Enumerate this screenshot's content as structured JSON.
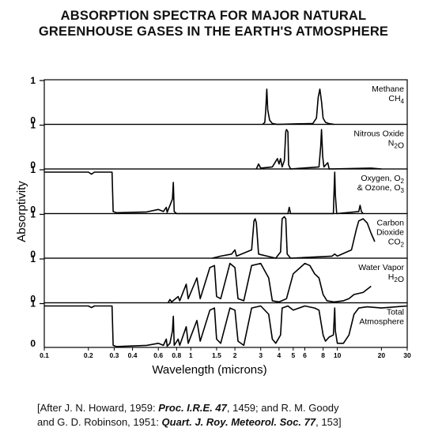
{
  "chart_data": {
    "type": "line",
    "title": "ABSORPTION SPECTRA FOR MAJOR NATURAL",
    "subtitle": "GREENHOUSE GASES IN THE EARTH'S ATMOSPHERE",
    "xlabel": "Wavelength (microns)",
    "ylabel": "Absorptivity",
    "xscale": "log",
    "xlim": [
      0.1,
      30
    ],
    "ylim": [
      0,
      1
    ],
    "x_ticks": [
      "0.1",
      "0.2",
      "0.3",
      "0.4",
      "0.6",
      "0.8",
      "1",
      "1.5",
      "2",
      "3",
      "4",
      "5",
      "6",
      "8",
      "10",
      "20",
      "30"
    ],
    "x_tick_values": [
      0.1,
      0.2,
      0.3,
      0.4,
      0.6,
      0.8,
      1,
      1.5,
      2,
      3,
      4,
      5,
      6,
      8,
      10,
      20,
      30
    ],
    "y_ticks": [
      "0",
      "1"
    ],
    "grid": false,
    "panels": [
      {
        "name": "Methane",
        "formula": "CH",
        "subscript": "4",
        "points": [
          [
            3.1,
            0
          ],
          [
            3.2,
            0.05
          ],
          [
            3.25,
            0.35
          ],
          [
            3.3,
            0.85
          ],
          [
            3.35,
            0.35
          ],
          [
            3.45,
            0.1
          ],
          [
            3.6,
            0.02
          ],
          [
            3.9,
            0
          ],
          [
            6.8,
            0.02
          ],
          [
            7.2,
            0.15
          ],
          [
            7.4,
            0.65
          ],
          [
            7.6,
            0.85
          ],
          [
            7.8,
            0.55
          ],
          [
            8.0,
            0.15
          ],
          [
            8.3,
            0.05
          ],
          [
            8.7,
            0.02
          ],
          [
            9.5,
            0
          ]
        ]
      },
      {
        "name": "Nitrous Oxide",
        "formula": "N",
        "subscript": "2",
        "formula_tail": "O",
        "points": [
          [
            2.8,
            0
          ],
          [
            2.9,
            0.12
          ],
          [
            3.0,
            0.02
          ],
          [
            3.6,
            0.05
          ],
          [
            3.9,
            0.25
          ],
          [
            4.0,
            0.12
          ],
          [
            4.1,
            0.25
          ],
          [
            4.2,
            0.05
          ],
          [
            4.35,
            0.2
          ],
          [
            4.45,
            0.9
          ],
          [
            4.5,
            0.95
          ],
          [
            4.6,
            0.9
          ],
          [
            4.65,
            0.1
          ],
          [
            4.8,
            0
          ],
          [
            7.5,
            0.05
          ],
          [
            7.7,
            0.55
          ],
          [
            7.8,
            0.95
          ],
          [
            7.95,
            0.3
          ],
          [
            8.1,
            0.05
          ],
          [
            8.6,
            0.15
          ],
          [
            8.8,
            0
          ],
          [
            17,
            0.02
          ],
          [
            20,
            0
          ]
        ]
      },
      {
        "name": "Oxygen, O",
        "name_subscript": "2",
        "formula": "& Ozone, O",
        "subscript": "3",
        "points": [
          [
            0.1,
            1
          ],
          [
            0.2,
            1
          ],
          [
            0.21,
            0.95
          ],
          [
            0.22,
            1
          ],
          [
            0.29,
            1
          ],
          [
            0.295,
            0.05
          ],
          [
            0.31,
            0.02
          ],
          [
            0.5,
            0.04
          ],
          [
            0.6,
            0.1
          ],
          [
            0.65,
            0.05
          ],
          [
            0.68,
            0.15
          ],
          [
            0.69,
            0.03
          ],
          [
            0.75,
            0.35
          ],
          [
            0.76,
            0.75
          ],
          [
            0.77,
            0.05
          ],
          [
            0.8,
            0
          ],
          [
            4.6,
            0
          ],
          [
            4.7,
            0.15
          ],
          [
            4.8,
            0
          ],
          [
            9.4,
            0
          ],
          [
            9.5,
            0.55
          ],
          [
            9.6,
            1
          ],
          [
            9.7,
            0.45
          ],
          [
            9.9,
            0
          ],
          [
            14,
            0.05
          ],
          [
            14.3,
            0.2
          ],
          [
            14.6,
            0.05
          ],
          [
            15,
            0
          ]
        ]
      },
      {
        "name": "Carbon",
        "formula": "Dioxide",
        "formula2": "CO",
        "subscript": "2",
        "points": [
          [
            1.4,
            0
          ],
          [
            1.6,
            0.05
          ],
          [
            1.9,
            0.1
          ],
          [
            2.0,
            0.2
          ],
          [
            2.05,
            0.05
          ],
          [
            2.6,
            0.2
          ],
          [
            2.7,
            0.9
          ],
          [
            2.75,
            0.95
          ],
          [
            2.8,
            0.85
          ],
          [
            2.9,
            0.1
          ],
          [
            3.8,
            0
          ],
          [
            4.1,
            0.15
          ],
          [
            4.2,
            0.95
          ],
          [
            4.35,
            1
          ],
          [
            4.45,
            0.95
          ],
          [
            4.55,
            0.1
          ],
          [
            4.8,
            0
          ],
          [
            9.2,
            0.05
          ],
          [
            9.6,
            0.1
          ],
          [
            10,
            0.05
          ],
          [
            12.5,
            0.2
          ],
          [
            13.5,
            0.7
          ],
          [
            14,
            0.9
          ],
          [
            15,
            0.95
          ],
          [
            16,
            0.85
          ],
          [
            17,
            0.6
          ],
          [
            18,
            0.4
          ]
        ]
      },
      {
        "name": "Water Vapor",
        "formula": "H",
        "subscript": "2",
        "formula_tail": "O",
        "points": [
          [
            0.7,
            0
          ],
          [
            0.72,
            0.08
          ],
          [
            0.74,
            0.02
          ],
          [
            0.82,
            0.15
          ],
          [
            0.84,
            0.05
          ],
          [
            0.93,
            0.45
          ],
          [
            0.96,
            0.1
          ],
          [
            1.1,
            0.6
          ],
          [
            1.16,
            0.1
          ],
          [
            1.35,
            0.85
          ],
          [
            1.45,
            0.9
          ],
          [
            1.5,
            0.15
          ],
          [
            1.6,
            0.1
          ],
          [
            1.85,
            0.95
          ],
          [
            2.0,
            0.85
          ],
          [
            2.1,
            0.1
          ],
          [
            2.3,
            0.05
          ],
          [
            2.6,
            0.9
          ],
          [
            3.0,
            0.95
          ],
          [
            3.4,
            0.6
          ],
          [
            3.6,
            0.05
          ],
          [
            4.0,
            0.02
          ],
          [
            4.5,
            0.1
          ],
          [
            5.0,
            0.7
          ],
          [
            6.0,
            0.95
          ],
          [
            6.5,
            0.9
          ],
          [
            7.0,
            0.7
          ],
          [
            7.5,
            0.6
          ],
          [
            8.0,
            0.2
          ],
          [
            8.5,
            0.05
          ],
          [
            9.5,
            0.02
          ],
          [
            11,
            0.05
          ],
          [
            12,
            0.1
          ],
          [
            13,
            0.2
          ],
          [
            15,
            0.25
          ],
          [
            17,
            0.4
          ]
        ]
      },
      {
        "name": "Total",
        "formula": "Atmosphere",
        "points": [
          [
            0.1,
            1
          ],
          [
            0.2,
            1
          ],
          [
            0.21,
            0.96
          ],
          [
            0.22,
            1
          ],
          [
            0.29,
            1
          ],
          [
            0.295,
            0.05
          ],
          [
            0.31,
            0.02
          ],
          [
            0.5,
            0.05
          ],
          [
            0.6,
            0.1
          ],
          [
            0.65,
            0.05
          ],
          [
            0.68,
            0.2
          ],
          [
            0.69,
            0.03
          ],
          [
            0.72,
            0.1
          ],
          [
            0.75,
            0.4
          ],
          [
            0.76,
            0.75
          ],
          [
            0.77,
            0.05
          ],
          [
            0.82,
            0.2
          ],
          [
            0.84,
            0.05
          ],
          [
            0.93,
            0.5
          ],
          [
            0.96,
            0.1
          ],
          [
            1.1,
            0.65
          ],
          [
            1.16,
            0.15
          ],
          [
            1.35,
            0.9
          ],
          [
            1.45,
            0.95
          ],
          [
            1.5,
            0.2
          ],
          [
            1.6,
            0.1
          ],
          [
            1.85,
            0.95
          ],
          [
            2.0,
            0.9
          ],
          [
            2.1,
            0.15
          ],
          [
            2.3,
            0.05
          ],
          [
            2.6,
            0.95
          ],
          [
            3.0,
            1
          ],
          [
            3.4,
            0.8
          ],
          [
            3.6,
            0.2
          ],
          [
            3.8,
            0.1
          ],
          [
            4.1,
            0.3
          ],
          [
            4.2,
            0.95
          ],
          [
            4.6,
            1
          ],
          [
            5.0,
            0.9
          ],
          [
            6.0,
            1
          ],
          [
            7.0,
            0.95
          ],
          [
            7.5,
            0.9
          ],
          [
            8.0,
            0.3
          ],
          [
            8.3,
            0.15
          ],
          [
            8.8,
            0.25
          ],
          [
            9.4,
            0.3
          ],
          [
            9.6,
            0.95
          ],
          [
            9.7,
            0.4
          ],
          [
            10,
            0.1
          ],
          [
            11,
            0.1
          ],
          [
            12,
            0.3
          ],
          [
            13,
            0.8
          ],
          [
            14,
            0.95
          ],
          [
            16,
            0.98
          ],
          [
            20,
            0.95
          ],
          [
            30,
            1
          ]
        ]
      }
    ]
  },
  "citation": {
    "line1_a": "[After J. N. Howard, 1959: ",
    "line1_b": "Proc. I.R.E. 47",
    "line1_c": ", 1459; and R. M. Goody",
    "line2_a": "and G. D. Robinson, 1951:  ",
    "line2_b": "Quart. J. Roy. Meteorol. Soc. 77",
    "line2_c": ", 153]"
  }
}
